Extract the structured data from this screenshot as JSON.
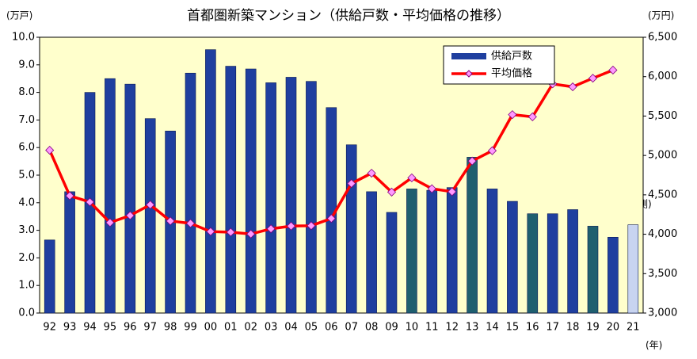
{
  "chart_data": {
    "type": "bar-line",
    "title": "首都圏新築マンション（供給戸数・平均価格の推移）",
    "y_label": "(万戸)",
    "y2_label": "(万円)",
    "x_label": "(年)",
    "annotation": "(予測)",
    "categories": [
      "92",
      "93",
      "94",
      "95",
      "96",
      "97",
      "98",
      "99",
      "00",
      "01",
      "02",
      "03",
      "04",
      "05",
      "06",
      "07",
      "08",
      "09",
      "10",
      "11",
      "12",
      "13",
      "14",
      "15",
      "16",
      "17",
      "18",
      "19",
      "20",
      "21"
    ],
    "series": [
      {
        "name": "供給戸数",
        "type": "bar",
        "color": "#1f3f9f",
        "colors": [
          "#1f3f9f",
          "#1f3f9f",
          "#1f3f9f",
          "#1f3f9f",
          "#1f3f9f",
          "#1f3f9f",
          "#1f3f9f",
          "#1f3f9f",
          "#1f3f9f",
          "#1f3f9f",
          "#1f3f9f",
          "#1f3f9f",
          "#1f3f9f",
          "#1f3f9f",
          "#1f3f9f",
          "#1f3f9f",
          "#1f3f9f",
          "#1f3f9f",
          "#1f5f6f",
          "#1f3f9f",
          "#1f3f9f",
          "#1f5f6f",
          "#1f3f9f",
          "#1f3f9f",
          "#1f5f6f",
          "#1f3f9f",
          "#1f3f9f",
          "#1f5f6f",
          "#1f3f9f",
          "#c8d4f0"
        ],
        "values": [
          2.65,
          4.4,
          8.0,
          8.5,
          8.3,
          7.05,
          6.6,
          8.7,
          9.55,
          8.95,
          8.85,
          8.35,
          8.55,
          8.4,
          7.45,
          6.1,
          4.4,
          3.65,
          4.5,
          4.45,
          4.55,
          5.65,
          4.5,
          4.05,
          3.6,
          3.6,
          3.75,
          3.15,
          2.75,
          3.2
        ]
      },
      {
        "name": "平均価格",
        "type": "line",
        "axis": "y2",
        "color": "#ff0000",
        "marker_color": "#ff99ff",
        "values": [
          5066,
          4488,
          4409,
          4148,
          4238,
          4374,
          4168,
          4138,
          4034,
          4026,
          4003,
          4069,
          4104,
          4108,
          4200,
          4644,
          4775,
          4535,
          4716,
          4578,
          4540,
          4929,
          5060,
          5518,
          5490,
          5908,
          5871,
          5980,
          6083,
          null
        ]
      }
    ],
    "ylim": [
      0,
      10
    ],
    "yticks": [
      {
        "value": 0,
        "label": "0.0"
      },
      {
        "value": 1,
        "label": "1.0"
      },
      {
        "value": 2,
        "label": "2.0"
      },
      {
        "value": 3,
        "label": "3.0"
      },
      {
        "value": 4,
        "label": "4.0"
      },
      {
        "value": 5,
        "label": "5.0"
      },
      {
        "value": 6,
        "label": "6.0"
      },
      {
        "value": 7,
        "label": "7.0"
      },
      {
        "value": 8,
        "label": "8.0"
      },
      {
        "value": 9,
        "label": "9.0"
      },
      {
        "value": 10,
        "label": "10.0"
      }
    ],
    "y2lim": [
      3000,
      6500
    ],
    "y2ticks": [
      {
        "value": 3000,
        "label": "3,000"
      },
      {
        "value": 3500,
        "label": "3,500"
      },
      {
        "value": 4000,
        "label": "4,000"
      },
      {
        "value": 4500,
        "label": "4,500"
      },
      {
        "value": 5000,
        "label": "5,000"
      },
      {
        "value": 5500,
        "label": "5,500"
      },
      {
        "value": 6000,
        "label": "6,000"
      },
      {
        "value": 6500,
        "label": "6,500"
      }
    ],
    "plot_background": "#ffffcc",
    "grid": false
  }
}
